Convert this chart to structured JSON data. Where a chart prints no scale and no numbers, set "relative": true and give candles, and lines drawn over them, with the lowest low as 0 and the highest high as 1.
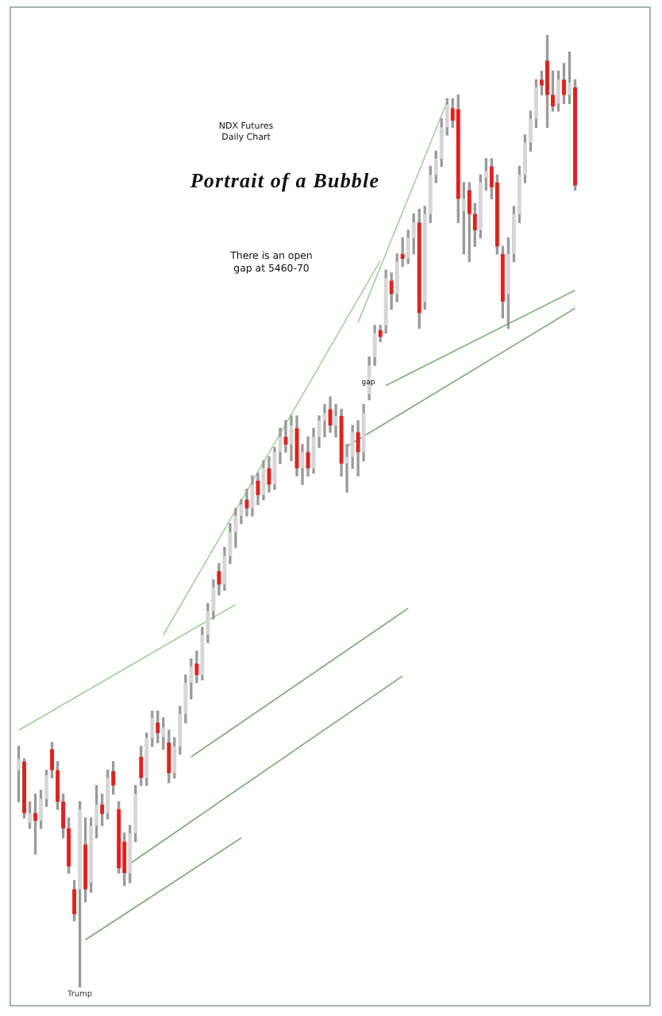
{
  "chart_data": {
    "type": "candlestick",
    "title": "Portrait of a Bubble",
    "subtitle": "NDX Futures Daily Chart",
    "annotations": [
      "There is an open gap at 5460-70",
      "gap"
    ],
    "relative": true,
    "marker": "none",
    "categories": [
      null,
      null,
      null,
      null,
      null,
      null,
      null,
      null,
      null,
      null,
      null,
      "Trump",
      null,
      null,
      null,
      null,
      null,
      null,
      null,
      null,
      null,
      null,
      null,
      null,
      null,
      null,
      null,
      null,
      null,
      null,
      null,
      null,
      null,
      null,
      null,
      null,
      null,
      null,
      null,
      null,
      null,
      null,
      null,
      null,
      null,
      null,
      null,
      null,
      null,
      null,
      null,
      null,
      null,
      null,
      null,
      null,
      null,
      null,
      null,
      null,
      null,
      null,
      null,
      null,
      null,
      null,
      null,
      null,
      null,
      null,
      null,
      null,
      null,
      null,
      null,
      null,
      null,
      null,
      null,
      null,
      null,
      null,
      null,
      null,
      null,
      null,
      null,
      null,
      null,
      null,
      null,
      null,
      null,
      null,
      null,
      null,
      null,
      null,
      null,
      null,
      null
    ],
    "ohlc": [
      [
        0.228,
        0.253,
        0.195,
        0.24
      ],
      [
        0.237,
        0.24,
        0.178,
        0.183
      ],
      [
        0.173,
        0.195,
        0.167,
        0.183
      ],
      [
        0.183,
        0.203,
        0.14,
        0.175
      ],
      [
        0.175,
        0.207,
        0.167,
        0.198
      ],
      [
        0.198,
        0.228,
        0.19,
        0.223
      ],
      [
        0.25,
        0.257,
        0.22,
        0.228
      ],
      [
        0.228,
        0.237,
        0.187,
        0.195
      ],
      [
        0.195,
        0.203,
        0.157,
        0.167
      ],
      [
        0.167,
        0.178,
        0.12,
        0.127
      ],
      [
        0.103,
        0.112,
        0.07,
        0.077
      ],
      [
        0.103,
        0.195,
        0,
        0.187
      ],
      [
        0.15,
        0.178,
        0.09,
        0.103
      ],
      [
        0.11,
        0.178,
        0.1,
        0.17
      ],
      [
        0.17,
        0.212,
        0.157,
        0.192
      ],
      [
        0.192,
        0.203,
        0.17,
        0.182
      ],
      [
        0.183,
        0.228,
        0.177,
        0.22
      ],
      [
        0.227,
        0.237,
        0.203,
        0.212
      ],
      [
        0.187,
        0.195,
        0.12,
        0.125
      ],
      [
        0.153,
        0.162,
        0.107,
        0.12
      ],
      [
        0.12,
        0.17,
        0.11,
        0.162
      ],
      [
        0.162,
        0.212,
        0.153,
        0.203
      ],
      [
        0.242,
        0.253,
        0.212,
        0.22
      ],
      [
        0.22,
        0.267,
        0.212,
        0.262
      ],
      [
        0.262,
        0.29,
        0.253,
        0.283
      ],
      [
        0.278,
        0.29,
        0.257,
        0.267
      ],
      [
        0.263,
        0.283,
        0.25,
        0.273
      ],
      [
        0.257,
        0.27,
        0.215,
        0.225
      ],
      [
        0.225,
        0.262,
        0.22,
        0.253
      ],
      [
        0.253,
        0.295,
        0.245,
        0.287
      ],
      [
        0.287,
        0.328,
        0.278,
        0.32
      ],
      [
        0.32,
        0.345,
        0.303,
        0.337
      ],
      [
        0.34,
        0.353,
        0.32,
        0.328
      ],
      [
        0.328,
        0.378,
        0.323,
        0.37
      ],
      [
        0.37,
        0.403,
        0.362,
        0.395
      ],
      [
        0.395,
        0.428,
        0.387,
        0.42
      ],
      [
        0.437,
        0.445,
        0.412,
        0.423
      ],
      [
        0.423,
        0.462,
        0.417,
        0.453
      ],
      [
        0.453,
        0.487,
        0.445,
        0.478
      ],
      [
        0.478,
        0.503,
        0.462,
        0.495
      ],
      [
        0.495,
        0.512,
        0.487,
        0.507
      ],
      [
        0.512,
        0.523,
        0.495,
        0.503
      ],
      [
        0.503,
        0.537,
        0.495,
        0.528
      ],
      [
        0.532,
        0.54,
        0.507,
        0.517
      ],
      [
        0.517,
        0.553,
        0.512,
        0.545
      ],
      [
        0.545,
        0.557,
        0.52,
        0.528
      ],
      [
        0.528,
        0.567,
        0.523,
        0.562
      ],
      [
        0.562,
        0.587,
        0.55,
        0.578
      ],
      [
        0.578,
        0.595,
        0.562,
        0.57
      ],
      [
        0.57,
        0.6,
        0.553,
        0.59
      ],
      [
        0.587,
        0.6,
        0.537,
        0.545
      ],
      [
        0.545,
        0.57,
        0.528,
        0.562
      ],
      [
        0.562,
        0.578,
        0.537,
        0.545
      ],
      [
        0.545,
        0.587,
        0.54,
        0.578
      ],
      [
        0.578,
        0.6,
        0.567,
        0.595
      ],
      [
        0.595,
        0.612,
        0.578,
        0.603
      ],
      [
        0.607,
        0.62,
        0.583,
        0.59
      ],
      [
        0.59,
        0.612,
        0.578,
        0.6
      ],
      [
        0.6,
        0.607,
        0.537,
        0.55
      ],
      [
        0.55,
        0.57,
        0.52,
        0.557
      ],
      [
        0.557,
        0.59,
        0.545,
        0.583
      ],
      [
        0.583,
        0.595,
        0.537,
        0.562
      ],
      [
        0.562,
        0.612,
        0.553,
        0.603
      ],
      [
        0.623,
        0.662,
        0.617,
        0.653
      ],
      [
        0.662,
        0.695,
        0.653,
        0.687
      ],
      [
        0.69,
        0.695,
        0.678,
        0.683
      ],
      [
        0.695,
        0.753,
        0.687,
        0.745
      ],
      [
        0.742,
        0.75,
        0.712,
        0.728
      ],
      [
        0.728,
        0.77,
        0.72,
        0.762
      ],
      [
        0.77,
        0.787,
        0.757,
        0.765
      ],
      [
        0.765,
        0.795,
        0.76,
        0.787
      ],
      [
        0.787,
        0.812,
        0.77,
        0.803
      ],
      [
        0.803,
        0.817,
        0.692,
        0.708
      ],
      [
        0.72,
        0.82,
        0.712,
        0.812
      ],
      [
        0.812,
        0.862,
        0.803,
        0.853
      ],
      [
        0.853,
        0.878,
        0.845,
        0.87
      ],
      [
        0.87,
        0.912,
        0.862,
        0.903
      ],
      [
        0.903,
        0.933,
        0.895,
        0.927
      ],
      [
        0.923,
        0.933,
        0.903,
        0.91
      ],
      [
        0.922,
        0.937,
        0.803,
        0.828
      ],
      [
        0.815,
        0.845,
        0.77,
        0.828
      ],
      [
        0.837,
        0.845,
        0.762,
        0.812
      ],
      [
        0.812,
        0.823,
        0.778,
        0.795
      ],
      [
        0.795,
        0.853,
        0.787,
        0.845
      ],
      [
        0.85,
        0.87,
        0.837,
        0.857
      ],
      [
        0.862,
        0.87,
        0.828,
        0.84
      ],
      [
        0.845,
        0.853,
        0.77,
        0.778
      ],
      [
        0.77,
        0.778,
        0.703,
        0.72
      ],
      [
        0.728,
        0.787,
        0.692,
        0.77
      ],
      [
        0.77,
        0.82,
        0.762,
        0.812
      ],
      [
        0.812,
        0.862,
        0.803,
        0.853
      ],
      [
        0.853,
        0.895,
        0.845,
        0.887
      ],
      [
        0.887,
        0.92,
        0.878,
        0.912
      ],
      [
        0.912,
        0.953,
        0.903,
        0.945
      ],
      [
        0.953,
        0.962,
        0.937,
        0.947
      ],
      [
        0.973,
        1,
        0.903,
        0.937
      ],
      [
        0.937,
        0.962,
        0.92,
        0.925
      ],
      [
        0.928,
        0.962,
        0.92,
        0.953
      ],
      [
        0.953,
        0.97,
        0.928,
        0.937
      ],
      [
        0.937,
        0.982,
        0.928,
        0.95
      ],
      [
        0.945,
        0.953,
        0.837,
        0.842
      ]
    ],
    "colors": [
      "#d6d6d6",
      "#e3201b",
      "#d6d6d6",
      "#e3201b",
      "#d6d6d6",
      "#d6d6d6",
      "#e3201b",
      "#e3201b",
      "#e3201b",
      "#e3201b",
      "#e3201b",
      "#d6d6d6",
      "#e3201b",
      "#d6d6d6",
      "#d6d6d6",
      "#e3201b",
      "#d6d6d6",
      "#e3201b",
      "#e3201b",
      "#e3201b",
      "#d6d6d6",
      "#d6d6d6",
      "#e3201b",
      "#d6d6d6",
      "#d6d6d6",
      "#e3201b",
      "#d6d6d6",
      "#e3201b",
      "#d6d6d6",
      "#d6d6d6",
      "#d6d6d6",
      "#d6d6d6",
      "#e3201b",
      "#d6d6d6",
      "#d6d6d6",
      "#d6d6d6",
      "#e3201b",
      "#d6d6d6",
      "#d6d6d6",
      "#d6d6d6",
      "#d6d6d6",
      "#e3201b",
      "#d6d6d6",
      "#e3201b",
      "#d6d6d6",
      "#e3201b",
      "#d6d6d6",
      "#d6d6d6",
      "#e3201b",
      "#d6d6d6",
      "#e3201b",
      "#d6d6d6",
      "#e3201b",
      "#d6d6d6",
      "#d6d6d6",
      "#d6d6d6",
      "#e3201b",
      "#d6d6d6",
      "#e3201b",
      "#d6d6d6",
      "#d6d6d6",
      "#e3201b",
      "#d6d6d6",
      "#d6d6d6",
      "#d6d6d6",
      "#e3201b",
      "#d6d6d6",
      "#e3201b",
      "#d6d6d6",
      "#e3201b",
      "#d6d6d6",
      "#d6d6d6",
      "#e3201b",
      "#d6d6d6",
      "#d6d6d6",
      "#d6d6d6",
      "#d6d6d6",
      "#d6d6d6",
      "#e3201b",
      "#e3201b",
      "#d6d6d6",
      "#e3201b",
      "#e3201b",
      "#d6d6d6",
      "#d6d6d6",
      "#e3201b",
      "#e3201b",
      "#e3201b",
      "#d6d6d6",
      "#d6d6d6",
      "#d6d6d6",
      "#d6d6d6",
      "#d6d6d6",
      "#d6d6d6",
      "#e3201b",
      "#e3201b",
      "#e3201b",
      "#d6d6d6",
      "#e3201b",
      "#d6d6d6",
      "#e3201b"
    ],
    "series": [
      {
        "type": "line",
        "color": "#a6cf9f",
        "values": [
          0.27,
          null,
          null,
          null,
          null,
          null,
          null,
          null,
          null,
          null,
          null,
          null,
          null,
          null,
          null,
          null,
          null,
          null,
          null,
          null,
          null,
          null,
          null,
          null,
          null,
          null,
          null,
          null,
          null,
          null,
          null,
          null,
          null,
          null,
          null,
          null,
          null,
          null,
          null,
          0.402,
          null,
          null,
          null,
          null,
          null,
          null,
          null,
          null,
          null,
          null,
          null,
          null,
          null,
          null,
          null,
          null,
          null,
          null,
          null,
          null,
          null,
          null,
          null,
          null,
          null,
          null,
          null,
          null,
          null,
          null,
          null,
          null,
          null,
          null,
          null,
          null,
          null,
          null,
          null,
          null,
          null,
          null,
          null,
          null,
          null,
          null,
          null,
          null,
          null,
          null,
          null,
          null,
          null,
          null,
          null,
          null,
          null,
          null,
          null,
          null,
          null
        ]
      },
      {
        "type": "line",
        "color": "#a6cf9f",
        "values": [
          null,
          null,
          null,
          null,
          null,
          null,
          null,
          null,
          null,
          null,
          null,
          null,
          null,
          null,
          null,
          null,
          null,
          null,
          null,
          null,
          null,
          null,
          null,
          null,
          null,
          null,
          0.37,
          null,
          null,
          null,
          null,
          null,
          null,
          null,
          null,
          null,
          null,
          null,
          null,
          null,
          null,
          null,
          null,
          null,
          null,
          null,
          null,
          null,
          null,
          null,
          null,
          null,
          null,
          null,
          null,
          null,
          null,
          null,
          null,
          null,
          null,
          null,
          null,
          null,
          null,
          0.763,
          null,
          null,
          null,
          null,
          null,
          null,
          null,
          null,
          null,
          null,
          null,
          null,
          null,
          null,
          null,
          null,
          null,
          null,
          null,
          null,
          null,
          null,
          null,
          null,
          null,
          null,
          null,
          null,
          null,
          null,
          null,
          null,
          null,
          null,
          null
        ]
      },
      {
        "type": "line",
        "color": "#a6cf9f",
        "values": [
          null,
          null,
          null,
          null,
          null,
          null,
          null,
          null,
          null,
          null,
          null,
          null,
          null,
          null,
          null,
          null,
          null,
          null,
          null,
          null,
          null,
          null,
          null,
          null,
          null,
          null,
          null,
          null,
          null,
          null,
          null,
          null,
          null,
          null,
          null,
          null,
          null,
          null,
          null,
          null,
          null,
          null,
          null,
          null,
          null,
          null,
          null,
          null,
          null,
          null,
          null,
          null,
          null,
          null,
          null,
          null,
          null,
          null,
          null,
          null,
          null,
          0.698,
          null,
          null,
          null,
          null,
          null,
          null,
          null,
          null,
          null,
          null,
          null,
          null,
          null,
          null,
          null,
          0.93,
          null,
          null,
          null,
          null,
          null,
          null,
          null,
          null,
          null,
          null,
          null,
          null,
          null,
          null,
          null,
          null,
          null,
          null,
          null,
          null,
          null,
          null,
          null
        ]
      },
      {
        "type": "line",
        "color": "#7aa874",
        "values": [
          null,
          null,
          null,
          null,
          null,
          null,
          null,
          null,
          null,
          null,
          null,
          null,
          null,
          null,
          null,
          null,
          null,
          null,
          null,
          null,
          0.13,
          null,
          null,
          null,
          null,
          null,
          null,
          null,
          null,
          null,
          null,
          null,
          null,
          null,
          null,
          null,
          null,
          null,
          null,
          null,
          null,
          null,
          null,
          null,
          null,
          null,
          null,
          null,
          null,
          null,
          null,
          null,
          null,
          null,
          null,
          null,
          null,
          null,
          null,
          null,
          null,
          null,
          null,
          null,
          null,
          null,
          null,
          null,
          null,
          0.327,
          null,
          null,
          null,
          null,
          null,
          null,
          null,
          null,
          null,
          null,
          null,
          null,
          null,
          null,
          null,
          null,
          null,
          null,
          null,
          null,
          null,
          null,
          null,
          null,
          null,
          null,
          null,
          null,
          null,
          null,
          null
        ]
      },
      {
        "type": "line",
        "color": "#7aa874",
        "values": [
          null,
          null,
          null,
          null,
          null,
          null,
          null,
          null,
          null,
          null,
          null,
          null,
          null,
          null,
          null,
          null,
          null,
          null,
          null,
          null,
          null,
          null,
          null,
          null,
          null,
          null,
          null,
          null,
          null,
          null,
          null,
          0.242,
          null,
          null,
          null,
          null,
          null,
          null,
          null,
          null,
          null,
          null,
          null,
          null,
          null,
          null,
          null,
          null,
          null,
          null,
          null,
          null,
          null,
          null,
          null,
          null,
          null,
          null,
          null,
          null,
          null,
          null,
          null,
          null,
          null,
          null,
          null,
          null,
          null,
          null,
          0.398,
          null,
          null,
          null,
          null,
          null,
          null,
          null,
          null,
          null,
          null,
          null,
          null,
          null,
          null,
          null,
          null,
          null,
          null,
          null,
          null,
          null,
          null,
          null,
          null,
          null,
          null,
          null,
          null,
          null,
          null
        ]
      },
      {
        "type": "line",
        "color": "#7aa874",
        "values": [
          null,
          null,
          null,
          null,
          null,
          null,
          null,
          null,
          null,
          null,
          null,
          null,
          0.05,
          null,
          null,
          null,
          null,
          null,
          null,
          null,
          null,
          null,
          null,
          null,
          null,
          null,
          null,
          null,
          null,
          null,
          null,
          null,
          null,
          null,
          null,
          null,
          null,
          null,
          null,
          null,
          0.157,
          null,
          null,
          null,
          null,
          null,
          null,
          null,
          null,
          null,
          null,
          null,
          null,
          null,
          null,
          null,
          null,
          null,
          null,
          null,
          null,
          null,
          null,
          null,
          null,
          null,
          null,
          null,
          null,
          null,
          null,
          null,
          null,
          null,
          null,
          null,
          null,
          null,
          null,
          null,
          null,
          null,
          null,
          null,
          null,
          null,
          null,
          null,
          null,
          null,
          null,
          null,
          null,
          null,
          null,
          null,
          null,
          null,
          null,
          null,
          null
        ]
      },
      {
        "type": "line",
        "color": "#7aa874",
        "values": [
          null,
          null,
          null,
          null,
          null,
          null,
          null,
          null,
          null,
          null,
          null,
          null,
          null,
          null,
          null,
          null,
          null,
          null,
          null,
          null,
          null,
          null,
          null,
          null,
          null,
          null,
          null,
          null,
          null,
          null,
          null,
          null,
          null,
          null,
          null,
          null,
          null,
          null,
          null,
          null,
          null,
          null,
          null,
          null,
          null,
          null,
          null,
          null,
          null,
          null,
          null,
          null,
          null,
          null,
          null,
          null,
          null,
          null,
          null,
          0.568,
          null,
          null,
          null,
          null,
          null,
          null,
          null,
          null,
          null,
          null,
          null,
          null,
          null,
          null,
          null,
          null,
          null,
          null,
          null,
          null,
          null,
          null,
          null,
          null,
          null,
          null,
          null,
          null,
          null,
          null,
          null,
          null,
          null,
          null,
          null,
          null,
          null,
          null,
          null,
          null,
          0.713
        ]
      },
      {
        "type": "line",
        "color": "#7aa874",
        "values": [
          null,
          null,
          null,
          null,
          null,
          null,
          null,
          null,
          null,
          null,
          null,
          null,
          null,
          null,
          null,
          null,
          null,
          null,
          null,
          null,
          null,
          null,
          null,
          null,
          null,
          null,
          null,
          null,
          null,
          null,
          null,
          null,
          null,
          null,
          null,
          null,
          null,
          null,
          null,
          null,
          null,
          null,
          null,
          null,
          null,
          null,
          null,
          null,
          null,
          null,
          null,
          null,
          null,
          null,
          null,
          null,
          null,
          null,
          null,
          null,
          null,
          null,
          null,
          null,
          null,
          null,
          0.632,
          null,
          null,
          null,
          null,
          null,
          null,
          null,
          null,
          null,
          null,
          null,
          null,
          null,
          null,
          null,
          null,
          null,
          null,
          null,
          null,
          null,
          null,
          null,
          null,
          null,
          null,
          null,
          null,
          null,
          null,
          null,
          null,
          null,
          0.732
        ]
      }
    ]
  }
}
